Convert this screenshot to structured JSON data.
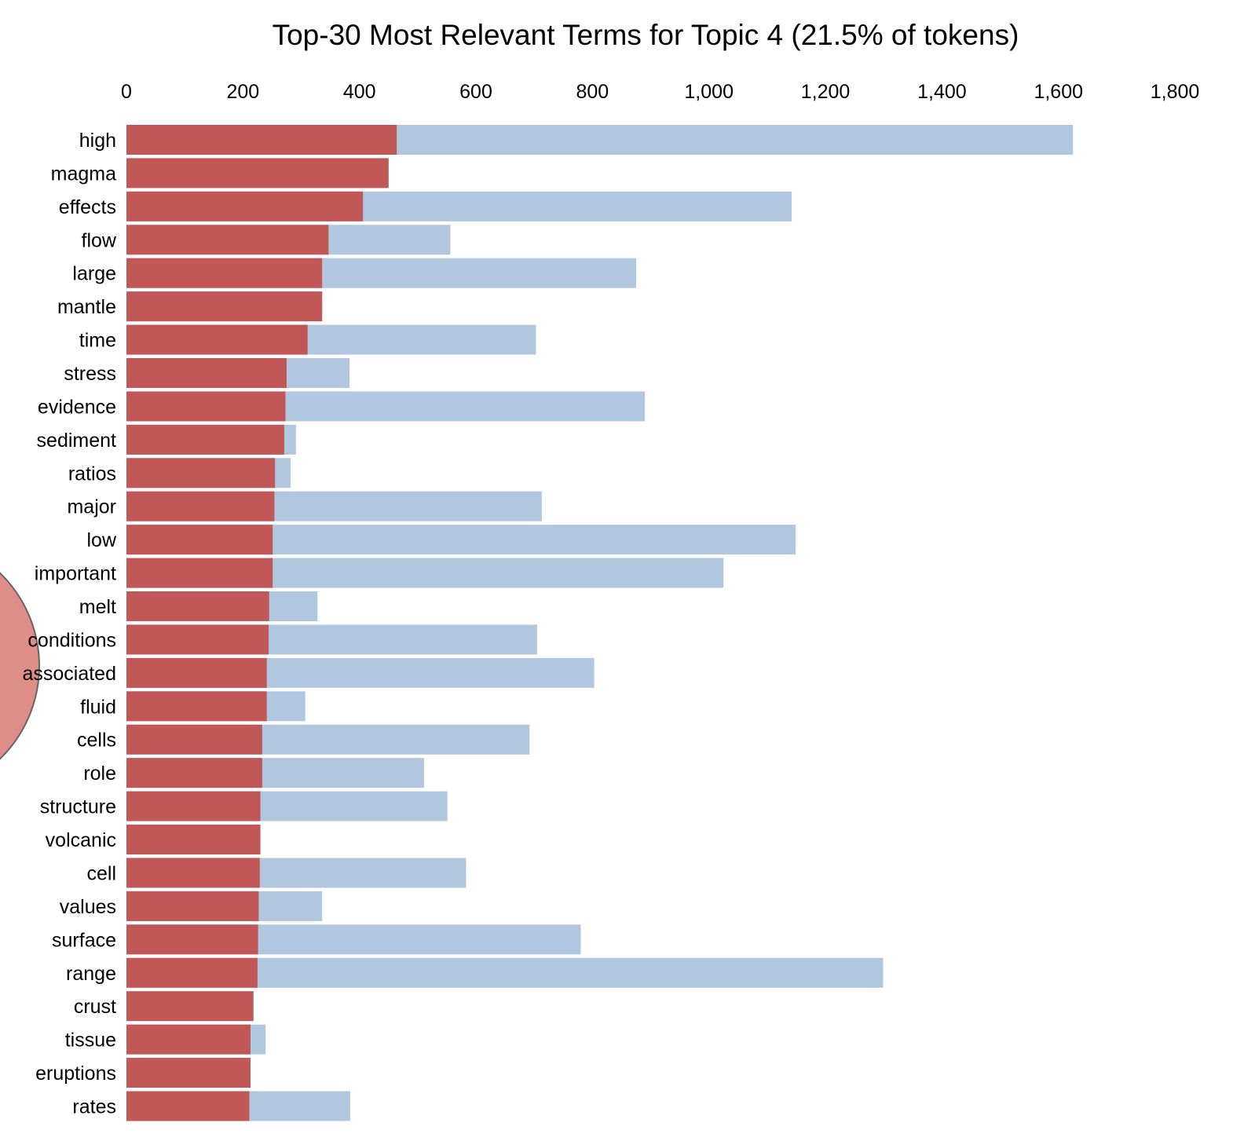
{
  "chart_data": {
    "type": "bar",
    "orientation": "horizontal",
    "title": "Top-30 Most Relevant Terms for Topic 4 (21.5% of tokens)",
    "xlabel": "",
    "ylabel": "",
    "xlim": [
      0,
      1800
    ],
    "x_ticks": [
      "0",
      "200",
      "400",
      "600",
      "800",
      "1,000",
      "1,200",
      "1,400",
      "1,600",
      "1,800"
    ],
    "x_axis_position": "top",
    "grid": false,
    "categories": [
      "high",
      "magma",
      "effects",
      "flow",
      "large",
      "mantle",
      "time",
      "stress",
      "evidence",
      "sediment",
      "ratios",
      "major",
      "low",
      "important",
      "melt",
      "conditions",
      "associated",
      "fluid",
      "cells",
      "role",
      "structure",
      "volcanic",
      "cell",
      "values",
      "surface",
      "range",
      "crust",
      "tissue",
      "eruptions",
      "rates"
    ],
    "series": [
      {
        "values": [
          1625,
          450,
          1142,
          556,
          875,
          336,
          703,
          383,
          890,
          291,
          282,
          713,
          1149,
          1025,
          328,
          705,
          803,
          307,
          692,
          511,
          551,
          230,
          583,
          336,
          780,
          1299,
          218,
          239,
          213,
          384
        ],
        "color": "#b0c7df"
      },
      {
        "values": [
          464,
          450,
          406,
          347,
          336,
          336,
          311,
          275,
          273,
          271,
          255,
          254,
          251,
          251,
          245,
          244,
          241,
          241,
          233,
          233,
          230,
          230,
          229,
          227,
          226,
          225,
          218,
          213,
          213,
          211
        ],
        "color": "#c15756"
      }
    ],
    "bubble_color": "#de8d87",
    "bubble_stroke": "#666666"
  }
}
